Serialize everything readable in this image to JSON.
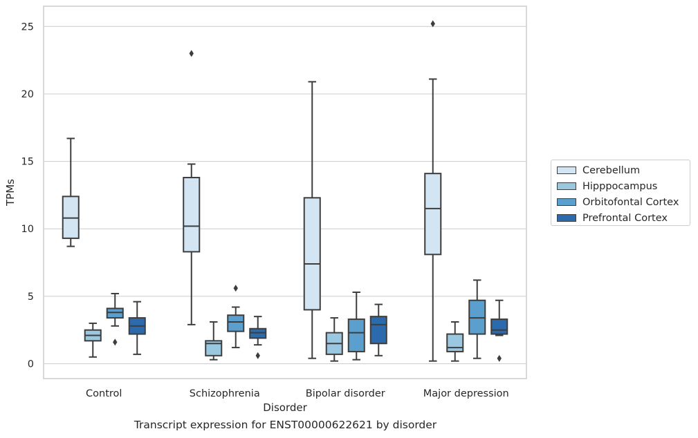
{
  "chart_data": {
    "type": "box",
    "title": "",
    "xlabel": "Disorder",
    "ylabel": "TPMs",
    "caption": "Transcript expression for ENST00000622621 by disorder",
    "ylim": [
      -1.1,
      26.5
    ],
    "yticks": [
      0,
      5,
      10,
      15,
      20,
      25
    ],
    "grid": true,
    "legend_position": "right",
    "categories": [
      "Control",
      "Schizophrenia",
      "Bipolar disorder",
      "Major depression"
    ],
    "series": [
      {
        "name": "Cerebellum",
        "color": "#d3e4f3",
        "boxes": [
          {
            "whisker_low": 8.7,
            "q1": 9.3,
            "median": 10.8,
            "q3": 12.4,
            "whisker_high": 16.7,
            "outliers": []
          },
          {
            "whisker_low": 2.9,
            "q1": 8.3,
            "median": 10.2,
            "q3": 13.8,
            "whisker_high": 14.8,
            "outliers": [
              23.0
            ]
          },
          {
            "whisker_low": 0.4,
            "q1": 4.0,
            "median": 7.4,
            "q3": 12.3,
            "whisker_high": 20.9,
            "outliers": []
          },
          {
            "whisker_low": 0.2,
            "q1": 8.1,
            "median": 11.5,
            "q3": 14.1,
            "whisker_high": 21.1,
            "outliers": [
              25.2
            ]
          }
        ]
      },
      {
        "name": "Hipppocampus",
        "color": "#9ac8e0",
        "boxes": [
          {
            "whisker_low": 0.5,
            "q1": 1.7,
            "median": 2.1,
            "q3": 2.5,
            "whisker_high": 3.0,
            "outliers": []
          },
          {
            "whisker_low": 0.3,
            "q1": 0.6,
            "median": 1.5,
            "q3": 1.7,
            "whisker_high": 3.1,
            "outliers": []
          },
          {
            "whisker_low": 0.2,
            "q1": 0.7,
            "median": 1.5,
            "q3": 2.3,
            "whisker_high": 3.4,
            "outliers": []
          },
          {
            "whisker_low": 0.2,
            "q1": 0.9,
            "median": 1.2,
            "q3": 2.2,
            "whisker_high": 3.1,
            "outliers": []
          }
        ]
      },
      {
        "name": "Orbitofontal Cortex",
        "color": "#5a9fcd",
        "boxes": [
          {
            "whisker_low": 2.8,
            "q1": 3.4,
            "median": 3.8,
            "q3": 4.1,
            "whisker_high": 5.2,
            "outliers": [
              1.6
            ]
          },
          {
            "whisker_low": 1.2,
            "q1": 2.4,
            "median": 3.1,
            "q3": 3.6,
            "whisker_high": 4.2,
            "outliers": [
              5.6
            ]
          },
          {
            "whisker_low": 0.3,
            "q1": 0.9,
            "median": 2.3,
            "q3": 3.3,
            "whisker_high": 5.3,
            "outliers": []
          },
          {
            "whisker_low": 0.4,
            "q1": 2.2,
            "median": 3.4,
            "q3": 4.7,
            "whisker_high": 6.2,
            "outliers": []
          }
        ]
      },
      {
        "name": "Prefrontal Cortex",
        "color": "#2a6aad",
        "boxes": [
          {
            "whisker_low": 0.7,
            "q1": 2.2,
            "median": 2.8,
            "q3": 3.4,
            "whisker_high": 4.6,
            "outliers": []
          },
          {
            "whisker_low": 1.4,
            "q1": 1.9,
            "median": 2.3,
            "q3": 2.6,
            "whisker_high": 3.5,
            "outliers": [
              0.6
            ]
          },
          {
            "whisker_low": 0.6,
            "q1": 1.5,
            "median": 2.9,
            "q3": 3.5,
            "whisker_high": 4.4,
            "outliers": []
          },
          {
            "whisker_low": 2.1,
            "q1": 2.2,
            "median": 2.5,
            "q3": 3.3,
            "whisker_high": 4.7,
            "outliers": [
              0.4
            ]
          }
        ]
      }
    ]
  }
}
